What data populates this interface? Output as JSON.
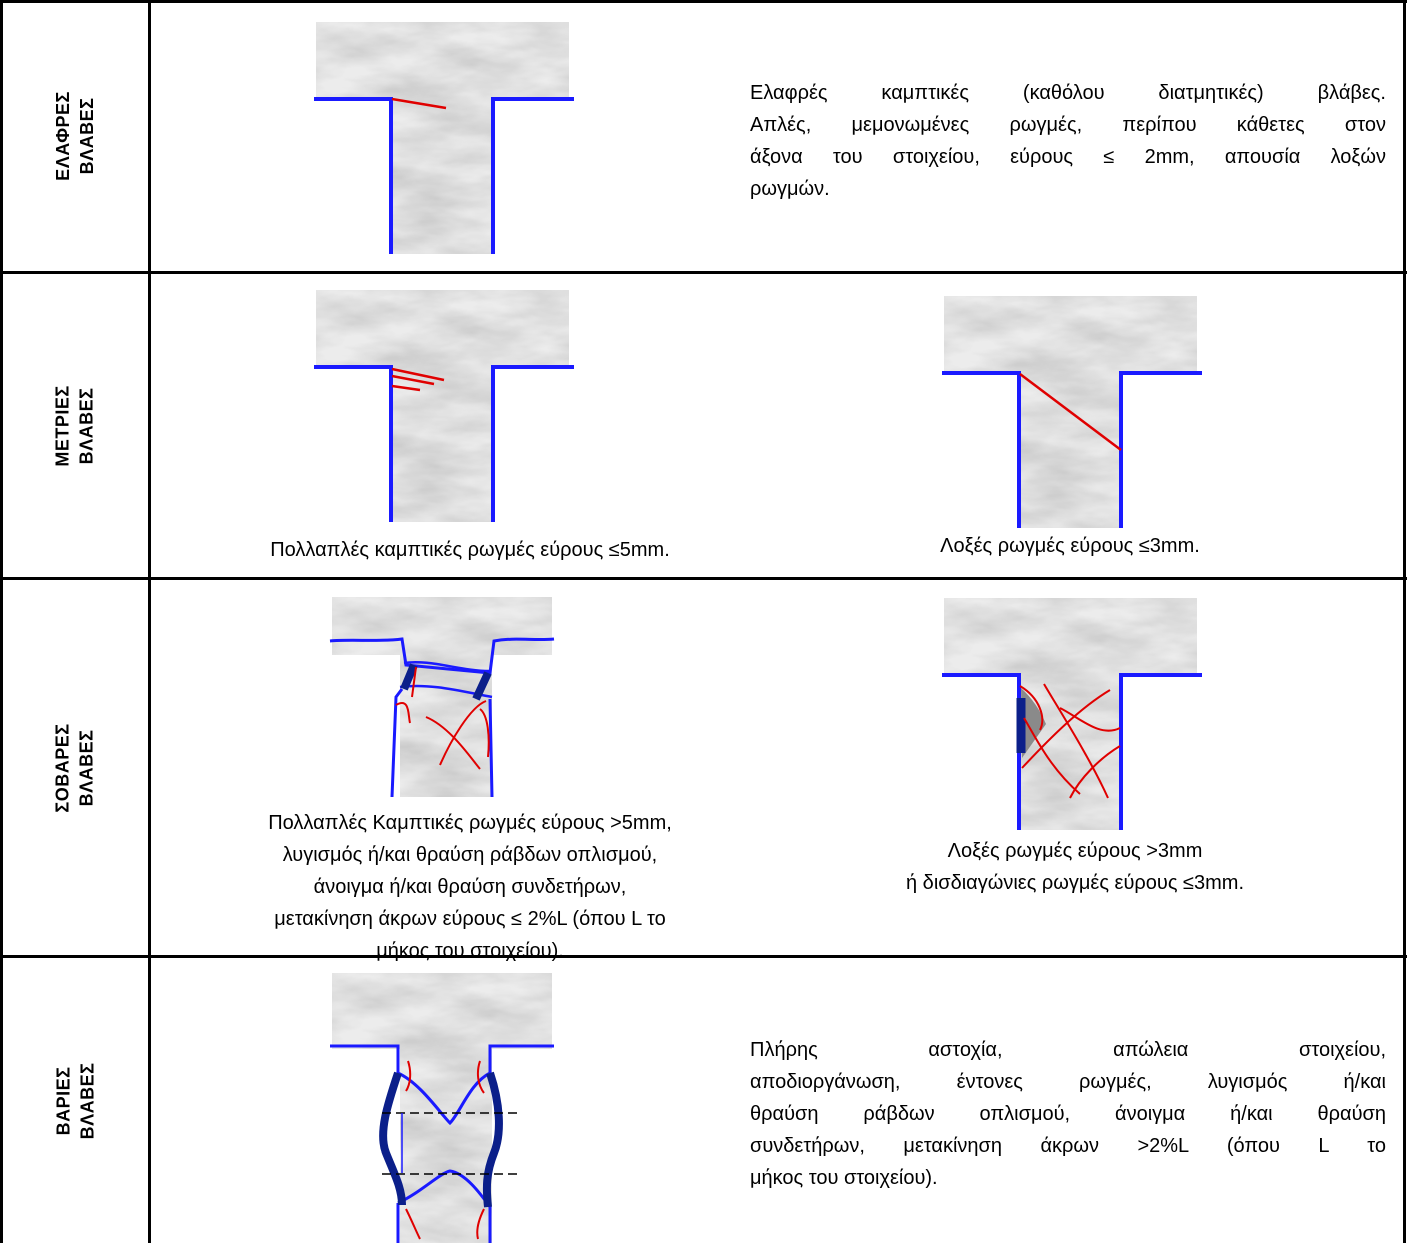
{
  "rows": [
    {
      "label_line1": "ΕΛΑΦΡΕΣ",
      "label_line2": "ΒΛΑΒΕΣ",
      "description_lines": [
        "Ελαφρές καμπτικές (καθόλου διατμητικές) βλάβες.",
        "Απλές, μεμονωμένες ρωγμές, περίπου κάθετες στον",
        "άξονα του στοιχείου, εύρους ≤ 2mm, απουσία λοξών",
        "ρωγμών."
      ]
    },
    {
      "label_line1": "ΜΕΤΡΙΕΣ",
      "label_line2": "ΒΛΑΒΕΣ",
      "caption_left": "Πολλαπλές καμπτικές ρωγμές εύρους ≤5mm.",
      "caption_right": "Λοξές ρωγμές εύρους ≤3mm."
    },
    {
      "label_line1": "ΣΟΒΑΡΕΣ",
      "label_line2": "ΒΛΑΒΕΣ",
      "caption_left_lines": [
        "Πολλαπλές Καμπτικές ρωγμές εύρους >5mm,",
        "λυγισμός ή/και θραύση ράβδων οπλισμού,",
        "άνοιγμα ή/και θραύση συνδετήρων,",
        "μετακίνηση άκρων εύρους ≤ 2%L (όπου L το",
        "μήκος του στοιχείου)."
      ],
      "caption_right_lines": [
        "Λοξές ρωγμές εύρους  >3mm",
        "ή δισδιαγώνιες ρωγμές εύρους ≤3mm."
      ]
    },
    {
      "label_line1": "ΒΑΡΙΕΣ",
      "label_line2": "ΒΛΑΒΕΣ",
      "description_lines": [
        "Πλήρης αστοχία, απώλεια στοιχείου,",
        "αποδιοργάνωση, έντονες ρωγμές, λυγισμός ή/και",
        "θραύση ράβδων οπλισμού, άνοιγμα ή/και θραύση",
        "συνδετήρων, μετακίνηση άκρων >2%L (όπου L το",
        "μήκος του στοιχείου)."
      ]
    }
  ],
  "colors": {
    "outline": "#1a1aff",
    "crack": "#e00000",
    "rebar": "#0b1f8a",
    "marble": "#dcdcdc"
  }
}
